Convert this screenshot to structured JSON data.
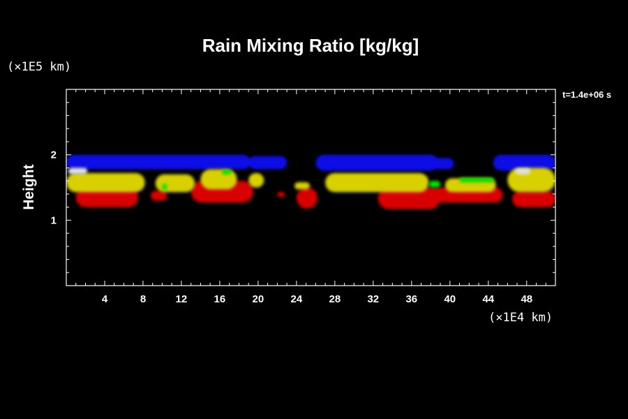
{
  "chart_data": {
    "type": "heatmap",
    "title": "Rain Mixing Ratio [kg/kg]",
    "xlabel": "",
    "ylabel": "Height",
    "x_unit_label": "(×1E4 km)",
    "y_unit_label": "(×1E5 km)",
    "time_label": "t=1.4e+06 s",
    "xlim": [
      0,
      51
    ],
    "ylim": [
      0,
      3
    ],
    "x_ticks": [
      4,
      8,
      12,
      16,
      20,
      24,
      28,
      32,
      36,
      40,
      44,
      48
    ],
    "y_ticks": [
      1,
      2
    ],
    "grid": false,
    "legend": "none",
    "colors": {
      "background": "#000000",
      "frame": "#ffffff",
      "blue": "#1010e8",
      "red": "#d80000",
      "yellow": "#d8d000",
      "green": "#00e000",
      "white": "#e0e0e0"
    },
    "layers": [
      {
        "color": "blue",
        "blobs": [
          {
            "x0": 0.0,
            "x1": 19.2,
            "y0": 1.78,
            "y1": 2.0
          },
          {
            "x0": 19.0,
            "x1": 23.0,
            "y0": 1.78,
            "y1": 1.98
          },
          {
            "x0": 26.0,
            "x1": 38.8,
            "y0": 1.76,
            "y1": 2.0
          },
          {
            "x0": 38.2,
            "x1": 40.4,
            "y0": 1.78,
            "y1": 1.95
          },
          {
            "x0": 44.5,
            "x1": 51.0,
            "y0": 1.76,
            "y1": 2.0
          }
        ]
      },
      {
        "color": "red",
        "blobs": [
          {
            "x0": 1.0,
            "x1": 7.5,
            "y0": 1.2,
            "y1": 1.5
          },
          {
            "x0": 8.8,
            "x1": 10.5,
            "y0": 1.3,
            "y1": 1.45
          },
          {
            "x0": 13.0,
            "x1": 19.5,
            "y0": 1.27,
            "y1": 1.6
          },
          {
            "x0": 22.0,
            "x1": 22.8,
            "y0": 1.36,
            "y1": 1.43
          },
          {
            "x0": 24.0,
            "x1": 26.2,
            "y0": 1.18,
            "y1": 1.5
          },
          {
            "x0": 32.5,
            "x1": 39.0,
            "y0": 1.17,
            "y1": 1.5
          },
          {
            "x0": 37.5,
            "x1": 45.5,
            "y0": 1.27,
            "y1": 1.5
          },
          {
            "x0": 46.5,
            "x1": 51.0,
            "y0": 1.2,
            "y1": 1.45
          }
        ]
      },
      {
        "color": "yellow",
        "blobs": [
          {
            "x0": 0.0,
            "x1": 8.2,
            "y0": 1.43,
            "y1": 1.72
          },
          {
            "x0": 9.3,
            "x1": 13.4,
            "y0": 1.43,
            "y1": 1.7
          },
          {
            "x0": 14.0,
            "x1": 17.8,
            "y0": 1.47,
            "y1": 1.78
          },
          {
            "x0": 19.0,
            "x1": 20.6,
            "y0": 1.5,
            "y1": 1.72
          },
          {
            "x0": 23.8,
            "x1": 25.4,
            "y0": 1.47,
            "y1": 1.58
          },
          {
            "x0": 27.0,
            "x1": 37.8,
            "y0": 1.43,
            "y1": 1.72
          },
          {
            "x0": 39.5,
            "x1": 44.8,
            "y0": 1.43,
            "y1": 1.64
          },
          {
            "x0": 46.0,
            "x1": 51.0,
            "y0": 1.43,
            "y1": 1.8
          }
        ]
      },
      {
        "color": "green",
        "blobs": [
          {
            "x0": 10.0,
            "x1": 10.5,
            "y0": 1.46,
            "y1": 1.56
          },
          {
            "x0": 16.2,
            "x1": 17.2,
            "y0": 1.7,
            "y1": 1.77
          },
          {
            "x0": 37.8,
            "x1": 39.0,
            "y0": 1.5,
            "y1": 1.6
          },
          {
            "x0": 41.0,
            "x1": 44.6,
            "y0": 1.58,
            "y1": 1.65
          }
        ]
      },
      {
        "color": "white",
        "blobs": [
          {
            "x0": 0.2,
            "x1": 2.2,
            "y0": 1.7,
            "y1": 1.8
          },
          {
            "x0": 46.8,
            "x1": 48.4,
            "y0": 1.7,
            "y1": 1.79
          }
        ]
      }
    ]
  }
}
